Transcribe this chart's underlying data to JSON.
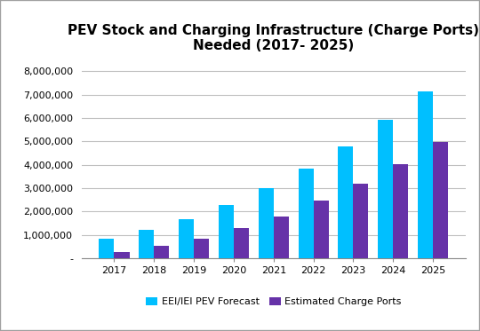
{
  "title": "PEV Stock and Charging Infrastructure (Charge Ports)\nNeeded (2017- 2025)",
  "years": [
    2017,
    2018,
    2019,
    2020,
    2021,
    2022,
    2023,
    2024,
    2025
  ],
  "pev_forecast": [
    820000,
    1230000,
    1660000,
    2260000,
    3000000,
    3820000,
    4800000,
    5920000,
    7130000
  ],
  "charge_ports": [
    270000,
    530000,
    840000,
    1300000,
    1790000,
    2450000,
    3200000,
    4010000,
    4970000
  ],
  "pev_color": "#00BFFF",
  "charge_color": "#6632A8",
  "legend_pev": "EEI/IEI PEV Forecast",
  "legend_charge": "Estimated Charge Ports",
  "ylim": [
    0,
    8500000
  ],
  "yticks": [
    0,
    1000000,
    2000000,
    3000000,
    4000000,
    5000000,
    6000000,
    7000000,
    8000000
  ],
  "ytick_labels": [
    "-",
    "1,000,000",
    "2,000,000",
    "3,000,000",
    "4,000,000",
    "5,000,000",
    "6,000,000",
    "7,000,000",
    "8,000,000"
  ],
  "background_color": "#ffffff",
  "title_fontsize": 11,
  "bar_width": 0.38,
  "grid_color": "#c0c0c0",
  "outer_border_color": "#a0a0a0"
}
